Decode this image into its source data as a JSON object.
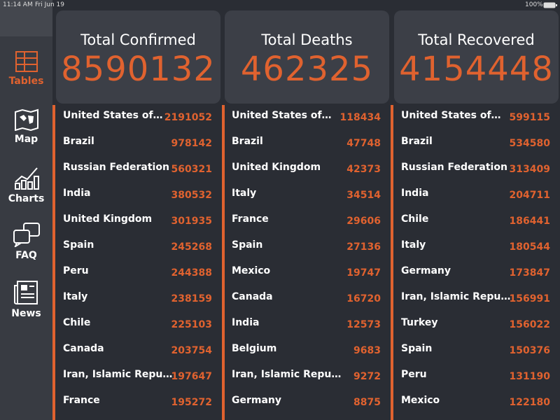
{
  "status_bar": {
    "time": "11:14 AM",
    "date": "Fri Jun 19",
    "battery": "100%"
  },
  "sidebar": {
    "items": [
      {
        "label": "Tables"
      },
      {
        "label": "Map"
      },
      {
        "label": "Charts"
      },
      {
        "label": "FAQ"
      },
      {
        "label": "News"
      }
    ]
  },
  "panels": [
    {
      "title": "Total Confirmed",
      "total": 8590132,
      "rows": [
        [
          "United States of…",
          2191052
        ],
        [
          "Brazil",
          978142
        ],
        [
          "Russian Federation",
          560321
        ],
        [
          "India",
          380532
        ],
        [
          "United Kingdom",
          301935
        ],
        [
          "Spain",
          245268
        ],
        [
          "Peru",
          244388
        ],
        [
          "Italy",
          238159
        ],
        [
          "Chile",
          225103
        ],
        [
          "Canada",
          203754
        ],
        [
          "Iran, Islamic Repu…",
          197647
        ],
        [
          "France",
          195272
        ]
      ]
    },
    {
      "title": "Total Deaths",
      "total": 462325,
      "rows": [
        [
          "United States of…",
          118434
        ],
        [
          "Brazil",
          47748
        ],
        [
          "United Kingdom",
          42373
        ],
        [
          "Italy",
          34514
        ],
        [
          "France",
          29606
        ],
        [
          "Spain",
          27136
        ],
        [
          "Mexico",
          19747
        ],
        [
          "Canada",
          16720
        ],
        [
          "India",
          12573
        ],
        [
          "Belgium",
          9683
        ],
        [
          "Iran, Islamic Repu…",
          9272
        ],
        [
          "Germany",
          8875
        ]
      ]
    },
    {
      "title": "Total Recovered",
      "total": 4154448,
      "rows": [
        [
          "United States of…",
          599115
        ],
        [
          "Brazil",
          534580
        ],
        [
          "Russian Federation",
          313409
        ],
        [
          "India",
          204711
        ],
        [
          "Chile",
          186441
        ],
        [
          "Italy",
          180544
        ],
        [
          "Germany",
          173847
        ],
        [
          "Iran, Islamic Repu…",
          156991
        ],
        [
          "Turkey",
          156022
        ],
        [
          "Spain",
          150376
        ],
        [
          "Peru",
          131190
        ],
        [
          "Mexico",
          122180
        ]
      ]
    }
  ]
}
